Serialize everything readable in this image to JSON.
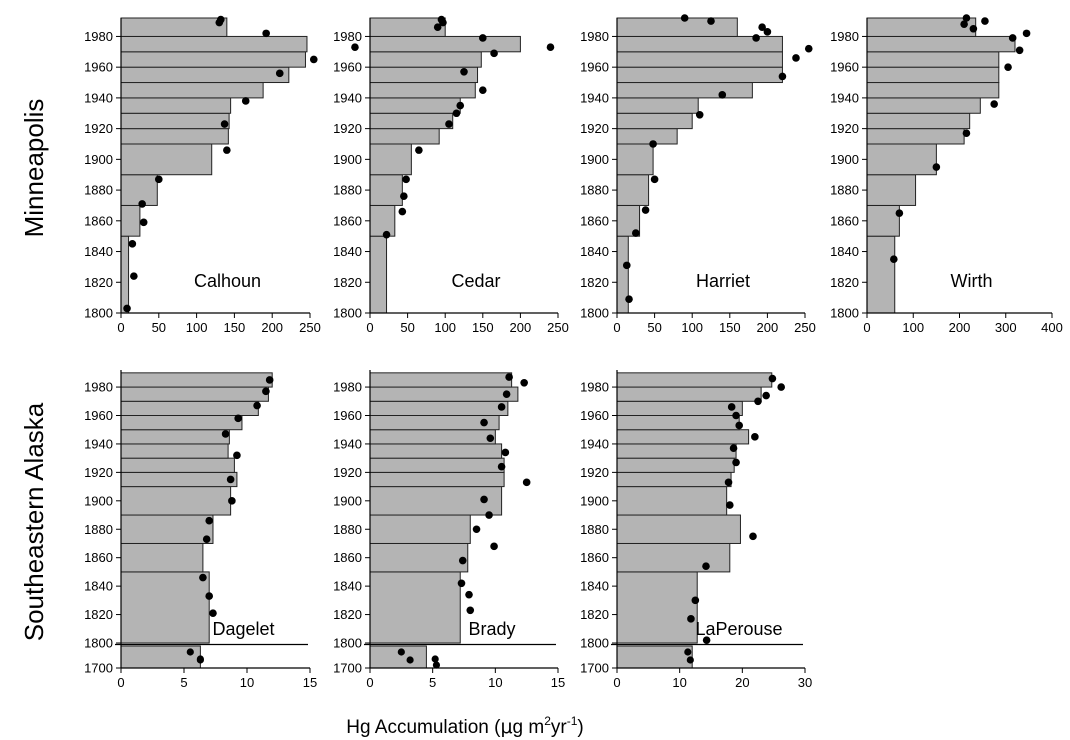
{
  "figure": {
    "row_labels": [
      "Minneapolis",
      "Southeastern Alaska"
    ],
    "xlabel_main": "Hg Accumulation (",
    "xlabel_mu": "μ",
    "xlabel_unit": "g m",
    "xlabel_sup1": "2",
    "xlabel_yr": "yr",
    "xlabel_sup2": "-1",
    "xlabel_close": ")"
  },
  "colors": {
    "bar_fill": "#b4b4b4",
    "bar_stroke": "#222222",
    "point": "#000000"
  },
  "chart_data": [
    {
      "type": "bar",
      "orientation": "horizontal",
      "title": "Calhoun",
      "xlim": [
        0,
        250
      ],
      "xticks": [
        0,
        50,
        100,
        150,
        200,
        250
      ],
      "ylim": [
        1800,
        1992
      ],
      "yticks": [
        1800,
        1820,
        1840,
        1860,
        1880,
        1900,
        1920,
        1940,
        1960,
        1980
      ],
      "bars": [
        {
          "y0": 1800,
          "y1": 1850,
          "x": 10
        },
        {
          "y0": 1850,
          "y1": 1870,
          "x": 25
        },
        {
          "y0": 1870,
          "y1": 1890,
          "x": 48
        },
        {
          "y0": 1890,
          "y1": 1910,
          "x": 120
        },
        {
          "y0": 1910,
          "y1": 1920,
          "x": 142
        },
        {
          "y0": 1920,
          "y1": 1930,
          "x": 143
        },
        {
          "y0": 1930,
          "y1": 1940,
          "x": 145
        },
        {
          "y0": 1940,
          "y1": 1950,
          "x": 188
        },
        {
          "y0": 1950,
          "y1": 1960,
          "x": 222
        },
        {
          "y0": 1960,
          "y1": 1970,
          "x": 244
        },
        {
          "y0": 1970,
          "y1": 1980,
          "x": 246
        },
        {
          "y0": 1980,
          "y1": 1992,
          "x": 140
        }
      ],
      "points": [
        {
          "x": 8,
          "y": 1803
        },
        {
          "x": 17,
          "y": 1824
        },
        {
          "x": 15,
          "y": 1845
        },
        {
          "x": 30,
          "y": 1859
        },
        {
          "x": 28,
          "y": 1871
        },
        {
          "x": 50,
          "y": 1887
        },
        {
          "x": 140,
          "y": 1906
        },
        {
          "x": 137,
          "y": 1923
        },
        {
          "x": 165,
          "y": 1938
        },
        {
          "x": 210,
          "y": 1956
        },
        {
          "x": 255,
          "y": 1965
        },
        {
          "x": 192,
          "y": 1982
        },
        {
          "x": 130,
          "y": 1989
        },
        {
          "x": 132,
          "y": 1991
        }
      ]
    },
    {
      "type": "bar",
      "orientation": "horizontal",
      "title": "Cedar",
      "xlim": [
        0,
        250
      ],
      "xticks": [
        0,
        50,
        100,
        150,
        200,
        250
      ],
      "ylim": [
        1800,
        1992
      ],
      "yticks": [
        1800,
        1820,
        1840,
        1860,
        1880,
        1900,
        1920,
        1940,
        1960,
        1980
      ],
      "bars": [
        {
          "y0": 1800,
          "y1": 1850,
          "x": 22
        },
        {
          "y0": 1850,
          "y1": 1870,
          "x": 33
        },
        {
          "y0": 1870,
          "y1": 1890,
          "x": 43
        },
        {
          "y0": 1890,
          "y1": 1910,
          "x": 55
        },
        {
          "y0": 1910,
          "y1": 1920,
          "x": 92
        },
        {
          "y0": 1920,
          "y1": 1930,
          "x": 110
        },
        {
          "y0": 1930,
          "y1": 1940,
          "x": 120
        },
        {
          "y0": 1940,
          "y1": 1950,
          "x": 140
        },
        {
          "y0": 1950,
          "y1": 1960,
          "x": 143
        },
        {
          "y0": 1960,
          "y1": 1970,
          "x": 148
        },
        {
          "y0": 1970,
          "y1": 1980,
          "x": 200
        },
        {
          "y0": 1980,
          "y1": 1992,
          "x": 100
        }
      ],
      "points": [
        {
          "x": 22,
          "y": 1851
        },
        {
          "x": 43,
          "y": 1866
        },
        {
          "x": 45,
          "y": 1876
        },
        {
          "x": 48,
          "y": 1887
        },
        {
          "x": 65,
          "y": 1906
        },
        {
          "x": 105,
          "y": 1923
        },
        {
          "x": 115,
          "y": 1930
        },
        {
          "x": 120,
          "y": 1935
        },
        {
          "x": 150,
          "y": 1945
        },
        {
          "x": 125,
          "y": 1957
        },
        {
          "x": 165,
          "y": 1969
        },
        {
          "x": 150,
          "y": 1979
        },
        {
          "x": -20,
          "y": 1973
        },
        {
          "x": 240,
          "y": 1973
        },
        {
          "x": 90,
          "y": 1986
        },
        {
          "x": 95,
          "y": 1991
        },
        {
          "x": 97,
          "y": 1989
        }
      ]
    },
    {
      "type": "bar",
      "orientation": "horizontal",
      "title": "Harriet",
      "xlim": [
        0,
        250
      ],
      "xticks": [
        0,
        50,
        100,
        150,
        200,
        250
      ],
      "ylim": [
        1800,
        1992
      ],
      "yticks": [
        1800,
        1820,
        1840,
        1860,
        1880,
        1900,
        1920,
        1940,
        1960,
        1980
      ],
      "bars": [
        {
          "y0": 1800,
          "y1": 1850,
          "x": 15
        },
        {
          "y0": 1850,
          "y1": 1870,
          "x": 30
        },
        {
          "y0": 1870,
          "y1": 1890,
          "x": 42
        },
        {
          "y0": 1890,
          "y1": 1910,
          "x": 48
        },
        {
          "y0": 1910,
          "y1": 1920,
          "x": 80
        },
        {
          "y0": 1920,
          "y1": 1930,
          "x": 100
        },
        {
          "y0": 1930,
          "y1": 1940,
          "x": 108
        },
        {
          "y0": 1940,
          "y1": 1950,
          "x": 180
        },
        {
          "y0": 1950,
          "y1": 1960,
          "x": 220
        },
        {
          "y0": 1960,
          "y1": 1970,
          "x": 220
        },
        {
          "y0": 1970,
          "y1": 1980,
          "x": 220
        },
        {
          "y0": 1980,
          "y1": 1992,
          "x": 160
        }
      ],
      "points": [
        {
          "x": 16,
          "y": 1809
        },
        {
          "x": 13,
          "y": 1831
        },
        {
          "x": 25,
          "y": 1852
        },
        {
          "x": 38,
          "y": 1867
        },
        {
          "x": 50,
          "y": 1887
        },
        {
          "x": 48,
          "y": 1910
        },
        {
          "x": 110,
          "y": 1929
        },
        {
          "x": 140,
          "y": 1942
        },
        {
          "x": 220,
          "y": 1954
        },
        {
          "x": 238,
          "y": 1966
        },
        {
          "x": 255,
          "y": 1972
        },
        {
          "x": 185,
          "y": 1979
        },
        {
          "x": 200,
          "y": 1983
        },
        {
          "x": 193,
          "y": 1986
        },
        {
          "x": 125,
          "y": 1990
        },
        {
          "x": 90,
          "y": 1992
        }
      ]
    },
    {
      "type": "bar",
      "orientation": "horizontal",
      "title": "Wirth",
      "xlim": [
        0,
        400
      ],
      "xticks": [
        0,
        100,
        200,
        300,
        400
      ],
      "ylim": [
        1800,
        1992
      ],
      "yticks": [
        1800,
        1820,
        1840,
        1860,
        1880,
        1900,
        1920,
        1940,
        1960,
        1980
      ],
      "bars": [
        {
          "y0": 1800,
          "y1": 1850,
          "x": 60
        },
        {
          "y0": 1850,
          "y1": 1870,
          "x": 70
        },
        {
          "y0": 1870,
          "y1": 1890,
          "x": 105
        },
        {
          "y0": 1890,
          "y1": 1910,
          "x": 150
        },
        {
          "y0": 1910,
          "y1": 1920,
          "x": 210
        },
        {
          "y0": 1920,
          "y1": 1930,
          "x": 222
        },
        {
          "y0": 1930,
          "y1": 1940,
          "x": 245
        },
        {
          "y0": 1940,
          "y1": 1950,
          "x": 285
        },
        {
          "y0": 1950,
          "y1": 1960,
          "x": 285
        },
        {
          "y0": 1960,
          "y1": 1970,
          "x": 285
        },
        {
          "y0": 1970,
          "y1": 1980,
          "x": 320
        },
        {
          "y0": 1980,
          "y1": 1992,
          "x": 235
        }
      ],
      "points": [
        {
          "x": 58,
          "y": 1835
        },
        {
          "x": 70,
          "y": 1865
        },
        {
          "x": 150,
          "y": 1895
        },
        {
          "x": 215,
          "y": 1917
        },
        {
          "x": 275,
          "y": 1936
        },
        {
          "x": 305,
          "y": 1960
        },
        {
          "x": 330,
          "y": 1971
        },
        {
          "x": 315,
          "y": 1979
        },
        {
          "x": 345,
          "y": 1982
        },
        {
          "x": 230,
          "y": 1985
        },
        {
          "x": 210,
          "y": 1988
        },
        {
          "x": 255,
          "y": 1990
        },
        {
          "x": 215,
          "y": 1992
        }
      ]
    },
    {
      "type": "bar",
      "orientation": "horizontal",
      "title": "Dagelet",
      "xlim": [
        0,
        15
      ],
      "xticks": [
        0,
        5,
        10,
        15
      ],
      "ylim": [
        1800,
        1992
      ],
      "yticks": [
        1800,
        1820,
        1840,
        1860,
        1880,
        1900,
        1920,
        1940,
        1960,
        1980
      ],
      "lower_yticks": [
        1700
      ],
      "lower_bar": 6.3,
      "lower_points": [
        5.5,
        6.3,
        6.3
      ],
      "bars": [
        {
          "y0": 1800,
          "y1": 1850,
          "x": 7.0
        },
        {
          "y0": 1850,
          "y1": 1870,
          "x": 6.5
        },
        {
          "y0": 1870,
          "y1": 1890,
          "x": 7.3
        },
        {
          "y0": 1890,
          "y1": 1910,
          "x": 8.7
        },
        {
          "y0": 1910,
          "y1": 1920,
          "x": 9.2
        },
        {
          "y0": 1920,
          "y1": 1930,
          "x": 9.0
        },
        {
          "y0": 1930,
          "y1": 1940,
          "x": 8.5
        },
        {
          "y0": 1940,
          "y1": 1950,
          "x": 8.6
        },
        {
          "y0": 1950,
          "y1": 1960,
          "x": 9.6
        },
        {
          "y0": 1960,
          "y1": 1970,
          "x": 10.9
        },
        {
          "y0": 1970,
          "y1": 1980,
          "x": 11.7
        },
        {
          "y0": 1980,
          "y1": 1990,
          "x": 12.0
        }
      ],
      "points": [
        {
          "x": 7.3,
          "y": 1821
        },
        {
          "x": 7.0,
          "y": 1833
        },
        {
          "x": 6.5,
          "y": 1846
        },
        {
          "x": 6.8,
          "y": 1873
        },
        {
          "x": 7.0,
          "y": 1886
        },
        {
          "x": 8.8,
          "y": 1900
        },
        {
          "x": 8.7,
          "y": 1915
        },
        {
          "x": 9.2,
          "y": 1932
        },
        {
          "x": 8.3,
          "y": 1947
        },
        {
          "x": 9.3,
          "y": 1958
        },
        {
          "x": 10.8,
          "y": 1967
        },
        {
          "x": 11.5,
          "y": 1977
        },
        {
          "x": 11.8,
          "y": 1985
        }
      ]
    },
    {
      "type": "bar",
      "orientation": "horizontal",
      "title": "Brady",
      "xlim": [
        0,
        15
      ],
      "xticks": [
        0,
        5,
        10,
        15
      ],
      "ylim": [
        1800,
        1992
      ],
      "yticks": [
        1800,
        1820,
        1840,
        1860,
        1880,
        1900,
        1920,
        1940,
        1960,
        1980
      ],
      "lower_yticks": [
        1700
      ],
      "lower_bar": 4.5,
      "lower_points": [
        2.5,
        3.2,
        5.2,
        5.3
      ],
      "bars": [
        {
          "y0": 1800,
          "y1": 1850,
          "x": 7.2
        },
        {
          "y0": 1850,
          "y1": 1870,
          "x": 7.8
        },
        {
          "y0": 1870,
          "y1": 1890,
          "x": 8.0
        },
        {
          "y0": 1890,
          "y1": 1910,
          "x": 10.5
        },
        {
          "y0": 1910,
          "y1": 1920,
          "x": 10.7
        },
        {
          "y0": 1920,
          "y1": 1930,
          "x": 10.7
        },
        {
          "y0": 1930,
          "y1": 1940,
          "x": 10.5
        },
        {
          "y0": 1940,
          "y1": 1950,
          "x": 10.0
        },
        {
          "y0": 1950,
          "y1": 1960,
          "x": 10.3
        },
        {
          "y0": 1960,
          "y1": 1970,
          "x": 11.0
        },
        {
          "y0": 1970,
          "y1": 1980,
          "x": 11.8
        },
        {
          "y0": 1980,
          "y1": 1990,
          "x": 11.3
        }
      ],
      "points": [
        {
          "x": 8.0,
          "y": 1823
        },
        {
          "x": 7.9,
          "y": 1834
        },
        {
          "x": 7.3,
          "y": 1842
        },
        {
          "x": 7.4,
          "y": 1858
        },
        {
          "x": 9.9,
          "y": 1868
        },
        {
          "x": 8.5,
          "y": 1880
        },
        {
          "x": 9.5,
          "y": 1890
        },
        {
          "x": 9.1,
          "y": 1901
        },
        {
          "x": 12.5,
          "y": 1913
        },
        {
          "x": 10.5,
          "y": 1924
        },
        {
          "x": 10.8,
          "y": 1934
        },
        {
          "x": 9.6,
          "y": 1944
        },
        {
          "x": 9.1,
          "y": 1955
        },
        {
          "x": 10.5,
          "y": 1966
        },
        {
          "x": 10.9,
          "y": 1975
        },
        {
          "x": 12.3,
          "y": 1983
        },
        {
          "x": 11.1,
          "y": 1987
        }
      ]
    },
    {
      "type": "bar",
      "orientation": "horizontal",
      "title": "LaPerouse",
      "xlim": [
        0,
        30
      ],
      "xticks": [
        0,
        10,
        20,
        30
      ],
      "ylim": [
        1800,
        1992
      ],
      "yticks": [
        1800,
        1820,
        1840,
        1860,
        1880,
        1900,
        1920,
        1940,
        1960,
        1980
      ],
      "lower_yticks": [
        1700
      ],
      "lower_bar": 12.0,
      "lower_points": [
        11.3,
        11.7
      ],
      "bars": [
        {
          "y0": 1800,
          "y1": 1850,
          "x": 12.8
        },
        {
          "y0": 1850,
          "y1": 1870,
          "x": 18.0
        },
        {
          "y0": 1870,
          "y1": 1890,
          "x": 19.7
        },
        {
          "y0": 1890,
          "y1": 1910,
          "x": 17.5
        },
        {
          "y0": 1910,
          "y1": 1920,
          "x": 18.2
        },
        {
          "y0": 1920,
          "y1": 1930,
          "x": 18.7
        },
        {
          "y0": 1930,
          "y1": 1940,
          "x": 19.0
        },
        {
          "y0": 1940,
          "y1": 1950,
          "x": 21.0
        },
        {
          "y0": 1950,
          "y1": 1960,
          "x": 19.5
        },
        {
          "y0": 1960,
          "y1": 1970,
          "x": 20.0
        },
        {
          "y0": 1970,
          "y1": 1980,
          "x": 23.0
        },
        {
          "y0": 1980,
          "y1": 1990,
          "x": 24.7
        }
      ],
      "points": [
        {
          "x": 14.3,
          "y": 1802
        },
        {
          "x": 11.8,
          "y": 1817
        },
        {
          "x": 12.5,
          "y": 1830
        },
        {
          "x": 14.2,
          "y": 1854
        },
        {
          "x": 21.7,
          "y": 1875
        },
        {
          "x": 18.0,
          "y": 1897
        },
        {
          "x": 17.8,
          "y": 1913
        },
        {
          "x": 19.0,
          "y": 1927
        },
        {
          "x": 18.6,
          "y": 1937
        },
        {
          "x": 22.0,
          "y": 1945
        },
        {
          "x": 19.5,
          "y": 1953
        },
        {
          "x": 19.0,
          "y": 1960
        },
        {
          "x": 18.3,
          "y": 1966
        },
        {
          "x": 22.5,
          "y": 1970
        },
        {
          "x": 23.8,
          "y": 1974
        },
        {
          "x": 26.2,
          "y": 1980
        },
        {
          "x": 24.8,
          "y": 1986
        }
      ]
    }
  ]
}
